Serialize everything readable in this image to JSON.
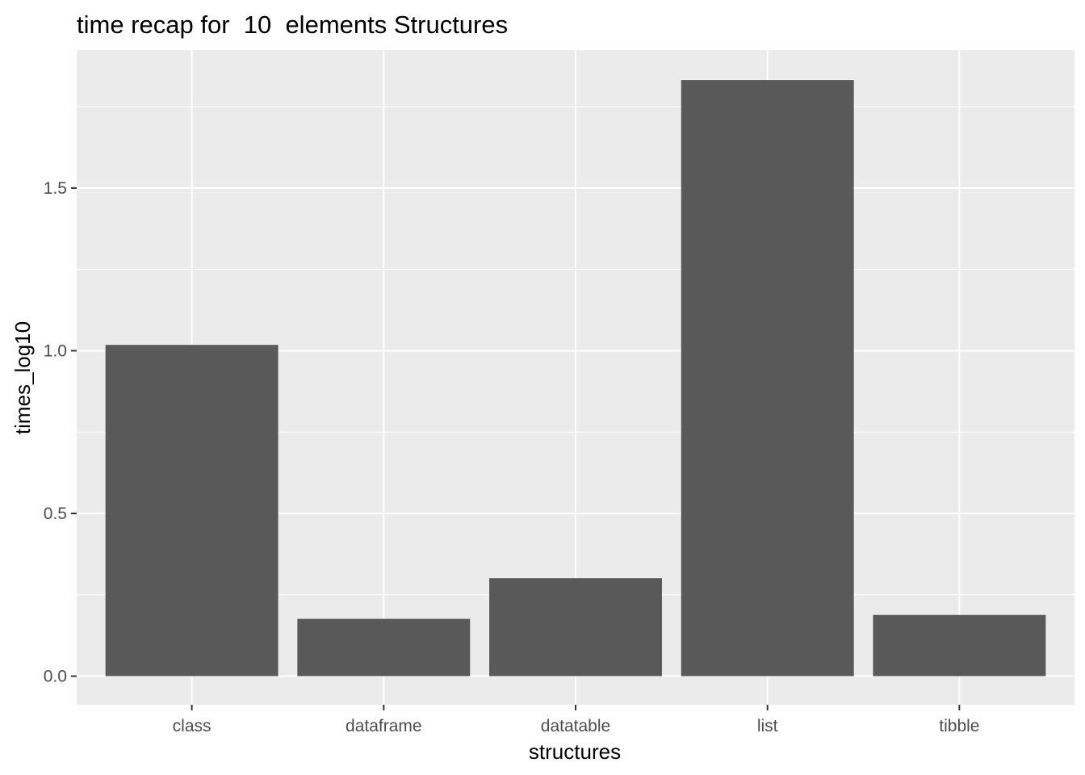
{
  "chart_data": {
    "type": "bar",
    "title": "time recap for  10  elements Structures",
    "xlabel": "structures",
    "ylabel": "times_log10",
    "categories": [
      "class",
      "dataframe",
      "datatable",
      "list",
      "tibble"
    ],
    "values": [
      1.018,
      0.176,
      0.301,
      1.832,
      0.188
    ],
    "ylim": [
      -0.088,
      1.924
    ],
    "yticks": [
      0.0,
      0.5,
      1.0,
      1.5
    ],
    "ytick_labels": [
      "0.0",
      "0.5",
      "1.0",
      "1.5"
    ],
    "grid": true,
    "legend": "none",
    "colors": {
      "panel_background": "#ebebeb",
      "grid": "#ffffff",
      "bar_fill": "#595959",
      "tick": "#333333"
    }
  }
}
